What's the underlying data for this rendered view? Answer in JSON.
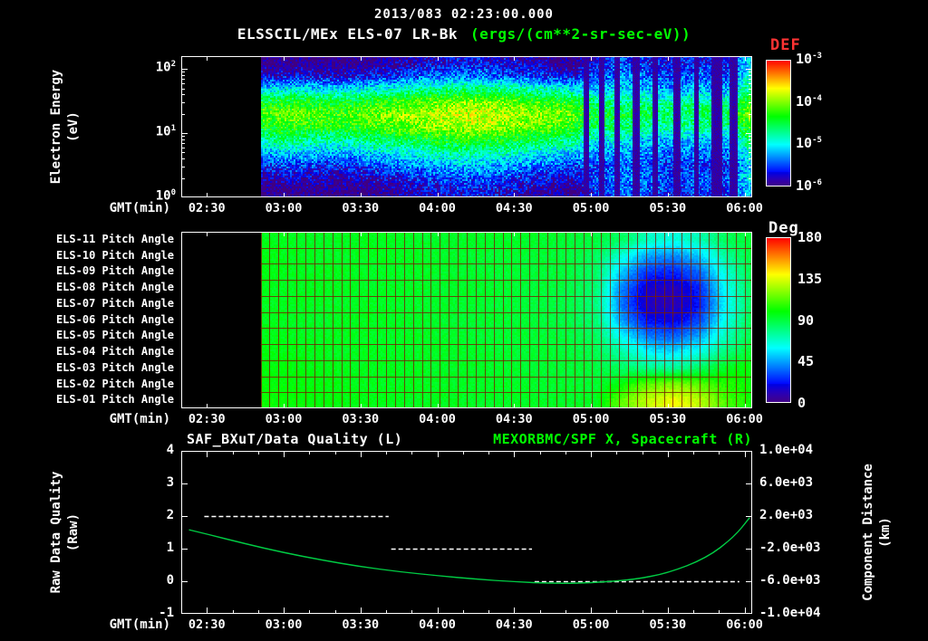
{
  "header": {
    "datetime": "2013/083 02:23:00.000",
    "instrument": "ELSSCIL/MEx ELS-07 LR-Bk",
    "units": "(ergs/(cm**2-sr-sec-eV))",
    "def_label": "DEF",
    "deg_label": "Deg"
  },
  "colors": {
    "background": "#000000",
    "text": "#ffffff",
    "accent_green": "#00ff00",
    "accent_red": "#ff3333",
    "curve_green": "#00cc44",
    "grid_maroon": "#781e00",
    "frame": "#ffffff"
  },
  "time_axis": {
    "label": "GMT(min)",
    "ticks": [
      "02:30",
      "03:00",
      "03:30",
      "04:00",
      "04:30",
      "05:00",
      "05:30",
      "06:00"
    ],
    "start_min": 140,
    "end_min": 363
  },
  "panels": {
    "spectrogram": {
      "ylabel_lines": [
        "Electron Energy",
        "(eV)"
      ],
      "y_ticks": [
        {
          "base": "10",
          "exp": "0",
          "value": 0
        },
        {
          "base": "10",
          "exp": "1",
          "value": 1
        },
        {
          "base": "10",
          "exp": "2",
          "value": 2
        }
      ],
      "colorbar_ticks": [
        {
          "base": "10",
          "exp": "-3",
          "value": -3
        },
        {
          "base": "10",
          "exp": "-4",
          "value": -4
        },
        {
          "base": "10",
          "exp": "-5",
          "value": -5
        },
        {
          "base": "10",
          "exp": "-6",
          "value": -6
        }
      ]
    },
    "pitch": {
      "row_labels": [
        "ELS-11 Pitch Angle",
        "ELS-10 Pitch Angle",
        "ELS-09 Pitch Angle",
        "ELS-08 Pitch Angle",
        "ELS-07 Pitch Angle",
        "ELS-06 Pitch Angle",
        "ELS-05 Pitch Angle",
        "ELS-04 Pitch Angle",
        "ELS-03 Pitch Angle",
        "ELS-02 Pitch Angle",
        "ELS-01 Pitch Angle"
      ],
      "colorbar_ticks": [
        {
          "label": "180",
          "value": 180
        },
        {
          "label": "135",
          "value": 135
        },
        {
          "label": "90",
          "value": 90
        },
        {
          "label": "45",
          "value": 45
        },
        {
          "label": "0",
          "value": 0
        }
      ]
    },
    "bottom": {
      "title_left": "SAF_BXuT/Data Quality (L)",
      "title_right": "MEXORBMC/SPF X, Spacecraft (R)",
      "ylabel_left_lines": [
        "Raw Data Quality",
        "(Raw)"
      ],
      "ylabel_right_lines": [
        "Component Distance",
        "(km)"
      ],
      "yticks_left": [
        {
          "label": "4",
          "value": 4
        },
        {
          "label": "3",
          "value": 3
        },
        {
          "label": "2",
          "value": 2
        },
        {
          "label": "1",
          "value": 1
        },
        {
          "label": "0",
          "value": 0
        },
        {
          "label": "-1",
          "value": -1
        }
      ],
      "yticks_right": [
        {
          "label": "1.0e+04",
          "value": 10000
        },
        {
          "label": "6.0e+03",
          "value": 6000
        },
        {
          "label": "2.0e+03",
          "value": 2000
        },
        {
          "label": "-2.0e+03",
          "value": -2000
        },
        {
          "label": "-6.0e+03",
          "value": -6000
        },
        {
          "label": "-1.0e+04",
          "value": -10000
        }
      ]
    }
  },
  "chart_data": [
    {
      "id": "energy_spectrogram",
      "type": "heatmap",
      "title": "ELSSCIL/MEx ELS-07 LR-Bk",
      "value_label": "DEF",
      "value_units": "ergs/(cm**2-sr-sec-eV)",
      "value_scale": "log10",
      "value_range": [
        -6,
        -3
      ],
      "colormap": "rainbow",
      "xlabel": "GMT(min)",
      "ylabel": "Electron Energy (eV)",
      "y_scale": "log10",
      "y_log_range": [
        0,
        2.2
      ],
      "data_start_min": 171,
      "orientation": "values_log10[time][energy_low_to_high]",
      "time_min": [
        172,
        182,
        192,
        202,
        212,
        222,
        232,
        242,
        252,
        262,
        272,
        282,
        292,
        302,
        312,
        322,
        332,
        342,
        352,
        362
      ],
      "log_energy": [
        0.1,
        0.3,
        0.5,
        0.7,
        0.9,
        1.1,
        1.3,
        1.5,
        1.7,
        1.9,
        2.1
      ],
      "values_log10": [
        [
          -6.0,
          -5.9,
          -5.6,
          -5.2,
          -4.75,
          -4.35,
          -4.2,
          -4.45,
          -5.1,
          -5.8,
          -6.0
        ],
        [
          -6.0,
          -5.8,
          -5.5,
          -5.1,
          -4.65,
          -4.25,
          -4.1,
          -4.35,
          -5.0,
          -5.7,
          -6.0
        ],
        [
          -6.0,
          -5.85,
          -5.55,
          -5.15,
          -4.7,
          -4.3,
          -4.15,
          -4.4,
          -5.05,
          -5.75,
          -6.0
        ],
        [
          -6.0,
          -5.9,
          -5.6,
          -5.2,
          -4.75,
          -4.35,
          -4.2,
          -4.45,
          -5.1,
          -5.8,
          -6.0
        ],
        [
          -6.0,
          -5.8,
          -5.5,
          -5.1,
          -4.65,
          -4.25,
          -4.1,
          -4.35,
          -5.0,
          -5.7,
          -6.0
        ],
        [
          -5.9,
          -5.7,
          -5.4,
          -5.0,
          -4.55,
          -4.15,
          -4.0,
          -4.25,
          -4.9,
          -5.6,
          -5.9
        ],
        [
          -5.8,
          -5.6,
          -5.3,
          -4.9,
          -4.45,
          -4.05,
          -3.9,
          -4.15,
          -4.8,
          -5.5,
          -5.8
        ],
        [
          -5.7,
          -5.5,
          -5.2,
          -4.8,
          -4.35,
          -3.95,
          -3.8,
          -4.05,
          -4.7,
          -5.4,
          -5.7
        ],
        [
          -5.65,
          -5.45,
          -5.15,
          -4.75,
          -4.3,
          -3.9,
          -3.75,
          -4.0,
          -4.65,
          -5.35,
          -5.65
        ],
        [
          -5.7,
          -5.5,
          -5.2,
          -4.8,
          -4.35,
          -3.95,
          -3.8,
          -4.05,
          -4.7,
          -5.4,
          -5.7
        ],
        [
          -5.8,
          -5.6,
          -5.3,
          -4.9,
          -4.45,
          -4.05,
          -3.9,
          -4.15,
          -4.8,
          -5.5,
          -5.8
        ],
        [
          -5.9,
          -5.7,
          -5.4,
          -5.0,
          -4.55,
          -4.15,
          -4.0,
          -4.25,
          -4.9,
          -5.6,
          -5.9
        ],
        [
          -6.0,
          -5.8,
          -5.5,
          -5.1,
          -4.65,
          -4.25,
          -4.1,
          -4.35,
          -5.0,
          -5.7,
          -6.0
        ],
        [
          -5.6,
          -5.5,
          -5.5,
          -5.3,
          -5.0,
          -4.6,
          -4.4,
          -4.65,
          -5.2,
          -5.5,
          -5.7
        ],
        [
          -5.4,
          -5.3,
          -5.4,
          -5.2,
          -5.0,
          -4.6,
          -4.45,
          -4.7,
          -5.1,
          -5.3,
          -5.5
        ],
        [
          -5.5,
          -5.4,
          -5.5,
          -5.3,
          -5.1,
          -4.7,
          -4.5,
          -4.75,
          -5.2,
          -5.4,
          -5.6
        ],
        [
          -5.6,
          -5.5,
          -5.6,
          -5.4,
          -5.2,
          -4.8,
          -4.6,
          -4.85,
          -5.3,
          -5.5,
          -5.7
        ],
        [
          -5.5,
          -5.4,
          -5.5,
          -5.3,
          -5.1,
          -4.7,
          -4.5,
          -4.75,
          -5.2,
          -5.4,
          -5.6
        ],
        [
          -5.6,
          -5.5,
          -5.6,
          -5.4,
          -5.2,
          -4.8,
          -4.6,
          -4.85,
          -5.3,
          -5.5,
          -5.7
        ],
        [
          -5.1,
          -5.0,
          -5.1,
          -4.9,
          -4.6,
          -4.2,
          -4.05,
          -4.25,
          -4.7,
          -4.9,
          -5.1
        ]
      ],
      "dropout_gaps_min": [
        {
          "t": 297,
          "w": 2
        },
        {
          "t": 303,
          "w": 2
        },
        {
          "t": 309,
          "w": 2
        },
        {
          "t": 316,
          "w": 3
        },
        {
          "t": 324,
          "w": 2
        },
        {
          "t": 332,
          "w": 3
        },
        {
          "t": 340,
          "w": 2
        },
        {
          "t": 347,
          "w": 4
        },
        {
          "t": 354,
          "w": 3
        }
      ]
    },
    {
      "id": "pitch_angles",
      "type": "heatmap",
      "rows_top_to_bottom": [
        "ELS-11",
        "ELS-10",
        "ELS-09",
        "ELS-08",
        "ELS-07",
        "ELS-06",
        "ELS-05",
        "ELS-04",
        "ELS-03",
        "ELS-02",
        "ELS-01"
      ],
      "value_label": "Pitch Angle",
      "value_units": "Deg",
      "value_range": [
        0,
        180
      ],
      "colormap": "rainbow",
      "data_start_min": 171,
      "grid_step_min": 3.5,
      "time_min": [
        172,
        182,
        192,
        202,
        212,
        222,
        232,
        242,
        252,
        262,
        272,
        282,
        292,
        302,
        312,
        322,
        332,
        342,
        352,
        362
      ],
      "values_deg": [
        [
          96,
          95,
          94,
          95,
          96,
          95,
          94,
          93,
          94,
          95,
          94,
          93,
          92,
          90,
          85,
          70,
          65,
          72,
          85,
          92
        ],
        [
          98,
          96,
          95,
          94,
          95,
          96,
          95,
          94,
          93,
          92,
          93,
          92,
          90,
          86,
          65,
          45,
          40,
          50,
          75,
          90
        ],
        [
          97,
          96,
          95,
          96,
          95,
          94,
          95,
          94,
          93,
          92,
          91,
          92,
          90,
          84,
          50,
          28,
          25,
          35,
          65,
          88
        ],
        [
          96,
          95,
          96,
          95,
          94,
          95,
          94,
          93,
          94,
          93,
          92,
          91,
          89,
          82,
          40,
          15,
          12,
          25,
          60,
          85
        ],
        [
          95,
          96,
          95,
          94,
          95,
          94,
          93,
          94,
          93,
          92,
          91,
          90,
          88,
          80,
          38,
          12,
          10,
          22,
          58,
          84
        ],
        [
          96,
          95,
          94,
          95,
          96,
          95,
          94,
          93,
          92,
          93,
          92,
          91,
          89,
          82,
          45,
          22,
          18,
          30,
          62,
          86
        ],
        [
          97,
          96,
          95,
          96,
          95,
          94,
          95,
          94,
          93,
          92,
          93,
          92,
          90,
          85,
          60,
          40,
          35,
          45,
          70,
          88
        ],
        [
          98,
          97,
          96,
          95,
          96,
          95,
          94,
          95,
          94,
          93,
          92,
          93,
          91,
          88,
          75,
          60,
          55,
          65,
          80,
          92
        ],
        [
          99,
          98,
          97,
          96,
          95,
          96,
          95,
          94,
          95,
          94,
          93,
          92,
          92,
          90,
          85,
          80,
          78,
          85,
          95,
          100
        ],
        [
          100,
          99,
          98,
          97,
          96,
          95,
          96,
          95,
          94,
          95,
          94,
          93,
          93,
          92,
          100,
          115,
          120,
          115,
          105,
          100
        ],
        [
          101,
          100,
          99,
          98,
          97,
          96,
          95,
          96,
          95,
          94,
          95,
          94,
          94,
          95,
          115,
          130,
          138,
          130,
          112,
          102
        ]
      ]
    },
    {
      "id": "quality_and_distance",
      "type": "line",
      "title_left": "SAF_BXuT/Data Quality (L)",
      "title_right": "MEXORBMC/SPF X, Spacecraft (R)",
      "y_left": {
        "label": "Raw Data Quality (Raw)",
        "range": [
          -1,
          4
        ]
      },
      "y_right": {
        "label": "Component Distance (km)",
        "range": [
          -10000,
          10000
        ]
      },
      "quality_segments": [
        {
          "value": 2,
          "start_min": 149,
          "end_min": 221
        },
        {
          "value": 1,
          "start_min": 222,
          "end_min": 277
        },
        {
          "value": 0,
          "start_min": 278,
          "end_min": 358
        }
      ],
      "distance_points_km": [
        [
          143,
          320
        ],
        [
          150,
          -210
        ],
        [
          165,
          -1400
        ],
        [
          180,
          -2480
        ],
        [
          195,
          -3400
        ],
        [
          210,
          -4200
        ],
        [
          225,
          -4830
        ],
        [
          240,
          -5320
        ],
        [
          255,
          -5750
        ],
        [
          270,
          -6060
        ],
        [
          285,
          -6280
        ],
        [
          300,
          -6225
        ],
        [
          317,
          -5780
        ],
        [
          330,
          -5000
        ],
        [
          345,
          -3180
        ],
        [
          356,
          -560
        ],
        [
          362,
          1800
        ]
      ]
    }
  ]
}
